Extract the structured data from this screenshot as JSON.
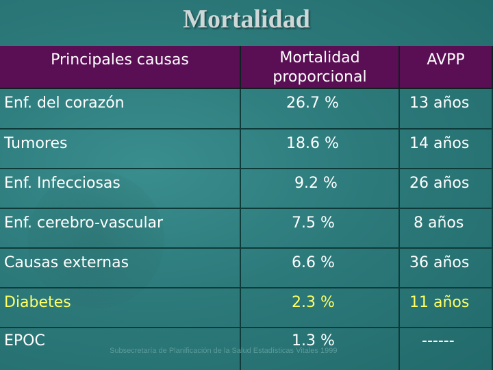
{
  "title": "Mortalidad",
  "headers": {
    "col1": "Principales causas",
    "col2_line1": "Mortalidad",
    "col2_line2": "proporcional",
    "col3": "AVPP"
  },
  "rows": [
    {
      "cause": "Enf. del corazón",
      "mortality": "26.7 %",
      "avpp": "13 años"
    },
    {
      "cause": "Tumores",
      "mortality": "18.6 %",
      "avpp": "14 años"
    },
    {
      "cause": "Enf. Infecciosas",
      "mortality": "9.2 %",
      "avpp": "26 años"
    },
    {
      "cause": "Enf. cerebro-vascular",
      "mortality": "7.5 %",
      "avpp": "8 años"
    },
    {
      "cause": "Causas externas",
      "mortality": "6.6 %",
      "avpp": "36 años"
    },
    {
      "cause": "Diabetes",
      "mortality": "2.3 %",
      "avpp": "11 años"
    },
    {
      "cause": "EPOC",
      "mortality": "1.3 %",
      "avpp": "------"
    }
  ],
  "footer": "Subsecretaría de Planificación de la Salud    Estadísticas Vitales 1999",
  "colors": {
    "header_bg": "#5a0f55",
    "highlight_text": "#ffff66",
    "background": "#2d7a7b"
  }
}
